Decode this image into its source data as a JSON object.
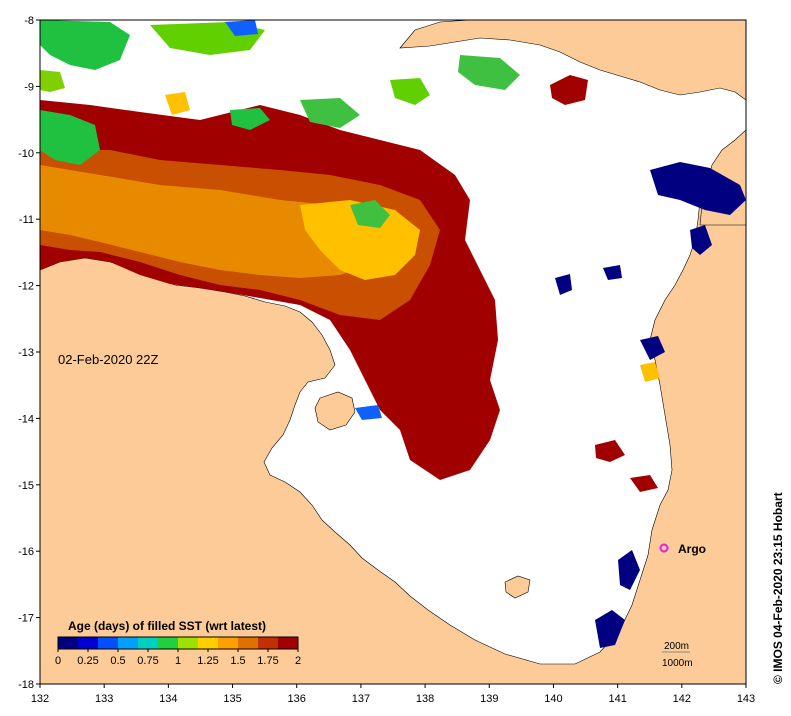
{
  "map": {
    "date_label": "02-Feb-2020 22Z",
    "credit": "© IMOS 04-Feb-2020 23:15 Hobart",
    "argo_label": "Argo",
    "depth_200": "200m",
    "depth_1000": "1000m",
    "lon_ticks": [
      "132",
      "133",
      "134",
      "135",
      "136",
      "137",
      "138",
      "139",
      "140",
      "141",
      "142",
      "143"
    ],
    "lat_ticks": [
      "-8",
      "-9",
      "-10",
      "-11",
      "-12",
      "-13",
      "-14",
      "-15",
      "-16",
      "-17",
      "-18"
    ],
    "colors": {
      "land": "#fdcb97",
      "ocean": "#ffffff",
      "argo": "#e020e0"
    }
  },
  "legend": {
    "title": "Age (days) of filled SST (wrt latest)",
    "ticks": [
      "0",
      "0.25",
      "0.5",
      "0.75",
      "1",
      "1.25",
      "1.5",
      "1.75",
      "2"
    ],
    "colormap": [
      "#000080",
      "#0000d0",
      "#0050ff",
      "#00a0ff",
      "#00d0c0",
      "#20d040",
      "#a0e000",
      "#ffd000",
      "#ffa000",
      "#e07000",
      "#c03000",
      "#a00000"
    ]
  }
}
